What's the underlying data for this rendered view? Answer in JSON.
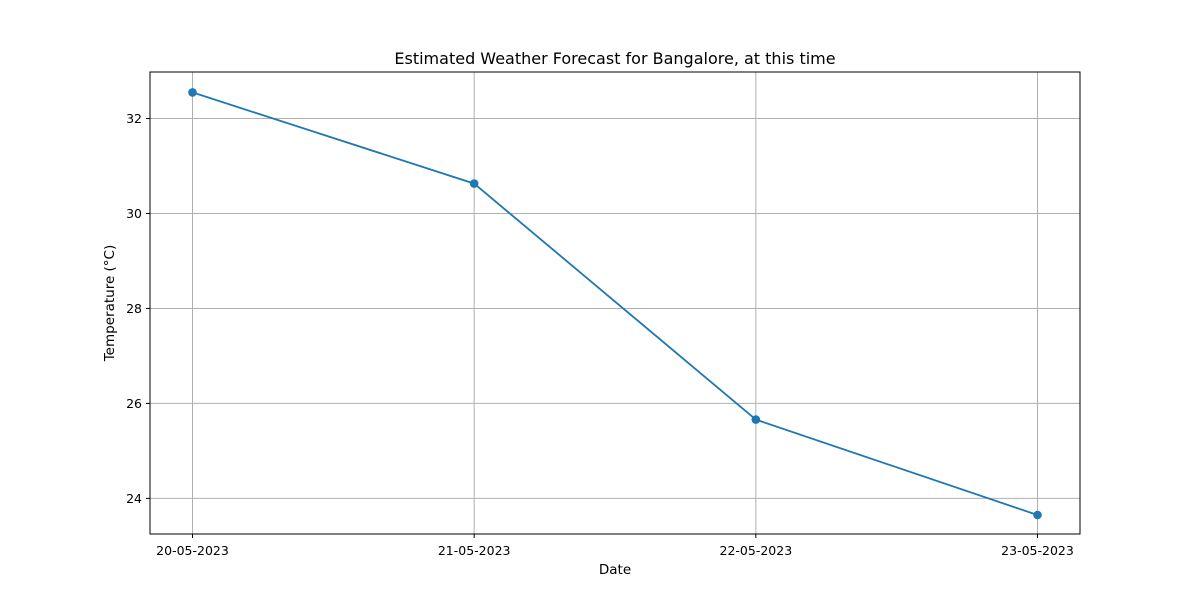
{
  "chart_data": {
    "type": "line",
    "title": "Estimated Weather Forecast for Bangalore, at this time",
    "xlabel": "Date",
    "ylabel": "Temperature (°C)",
    "categories": [
      "20-05-2023",
      "21-05-2023",
      "22-05-2023",
      "23-05-2023"
    ],
    "series": [
      {
        "values": [
          32.55,
          30.63,
          25.66,
          23.65
        ]
      }
    ],
    "ylim": [
      23.25,
      32.98
    ],
    "yticks": [
      24,
      26,
      28,
      30,
      32
    ],
    "grid": true,
    "markers": true,
    "line_color": "#1f77b4"
  }
}
